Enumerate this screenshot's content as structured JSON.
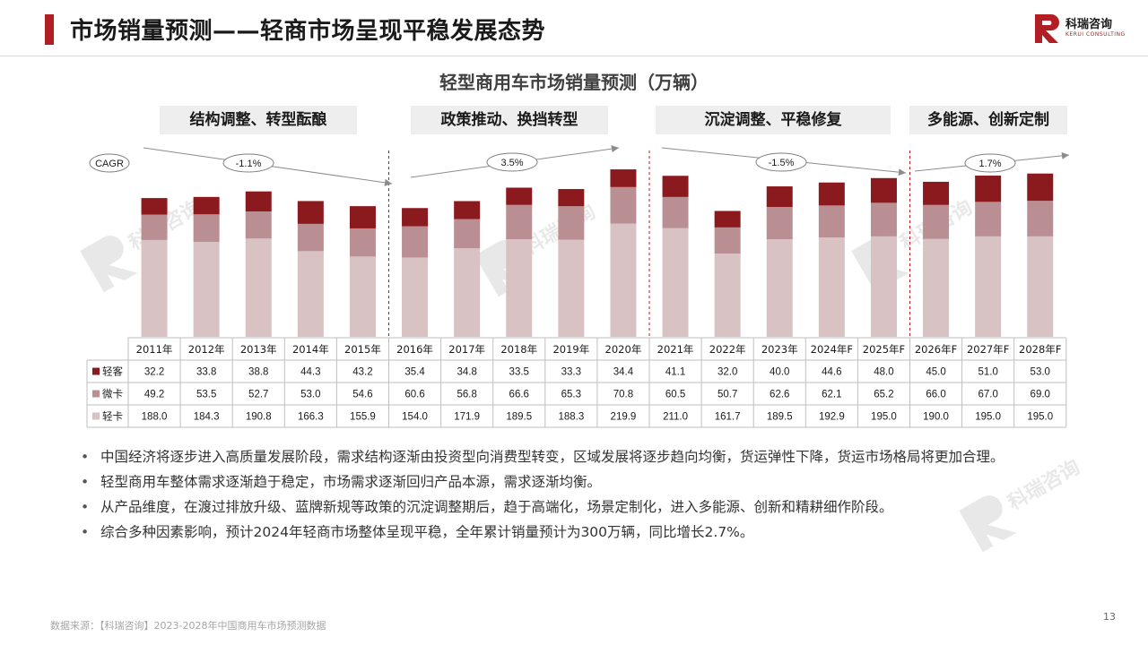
{
  "header": {
    "title": "市场销量预测——轻商市场呈现平稳发展态势",
    "logo_name": "科瑞咨询",
    "logo_sub": "KERUI CONSULTING"
  },
  "phases": [
    {
      "label": "结构调整、转型酝酿",
      "cagr": "-1.1%"
    },
    {
      "label": "政策推动、换挡转型",
      "cagr": "3.5%"
    },
    {
      "label": "沉淀调整、平稳修复",
      "cagr": "-1.5%"
    },
    {
      "label": "多能源、创新定制",
      "cagr": "1.7%"
    }
  ],
  "cagr_label": "CAGR",
  "colors": {
    "light_passenger": "#8b1a1e",
    "mini_truck": "#b98f93",
    "light_truck": "#d8c2c4",
    "accent": "#b11f24"
  },
  "chart_data": {
    "type": "bar",
    "stacked": true,
    "title": "轻型商用车市场销量预测（万辆）",
    "categories": [
      "2011年",
      "2012年",
      "2013年",
      "2014年",
      "2015年",
      "2016年",
      "2017年",
      "2018年",
      "2019年",
      "2020年",
      "2021年",
      "2022年",
      "2023年",
      "2024年F",
      "2025年F",
      "2026年F",
      "2027年F",
      "2028年F"
    ],
    "series": [
      {
        "name": "轻客",
        "values": [
          32.2,
          33.8,
          38.8,
          44.3,
          43.2,
          35.4,
          34.8,
          33.5,
          33.3,
          34.4,
          41.1,
          32.0,
          40.0,
          44.6,
          48.0,
          45.0,
          51.0,
          53.0
        ]
      },
      {
        "name": "微卡",
        "values": [
          49.2,
          53.5,
          52.7,
          53.0,
          54.6,
          60.6,
          56.8,
          66.6,
          65.3,
          70.8,
          60.5,
          50.7,
          62.6,
          62.1,
          65.2,
          66.0,
          67.0,
          69.0
        ]
      },
      {
        "name": "轻卡",
        "values": [
          188.0,
          184.3,
          190.8,
          166.3,
          155.9,
          154.0,
          171.9,
          189.5,
          188.3,
          219.9,
          211.0,
          161.7,
          189.5,
          192.9,
          195.0,
          190.0,
          195.0,
          195.0
        ]
      }
    ],
    "value_labels": {
      "轻客": [
        "32.2",
        "33.8",
        "38.8",
        "44.3",
        "43.2",
        "35.4",
        "34.8",
        "33.5",
        "33.3",
        "34.4",
        "41.1",
        "32.0",
        "40.0",
        "44.6",
        "48.0",
        "45.0",
        "51.0",
        "53.0"
      ],
      "微卡": [
        "49.2",
        "53.5",
        "52.7",
        "53.0",
        "54.6",
        "60.6",
        "56.8",
        "66.6",
        "65.3",
        "70.8",
        "60.5",
        "50.7",
        "62.6",
        "62.1",
        "65.2",
        "66.0",
        "67.0",
        "69.0"
      ],
      "轻卡": [
        "188.0",
        "184.3",
        "190.8",
        "166.3",
        "155.9",
        "154.0",
        "171.9",
        "189.5",
        "188.3",
        "219.9",
        "211.0",
        "161.7",
        "189.5",
        "192.9",
        "195.0",
        "190.0",
        "195.0",
        "195.0"
      ]
    },
    "legend_placement": "table-left"
  },
  "bullets": [
    "中国经济将逐步进入高质量发展阶段，需求结构逐渐由投资型向消费型转变，区域发展将逐步趋向均衡，货运弹性下降，货运市场格局将更加合理。",
    "轻型商用车整体需求逐渐趋于稳定，市场需求逐渐回归产品本源，需求逐渐均衡。",
    "从产品维度，在渡过排放升级、蓝牌新规等政策的沉淀调整期后，趋于高端化，场景定制化，进入多能源、创新和精耕细作阶段。",
    "综合多种因素影响，预计2024年轻商市场整体呈现平稳，全年累计销量预计为300万辆，同比增长2.7%。"
  ],
  "footer": {
    "source": "数据来源：【科瑞咨询】2023-2028年中国商用车市场预测数据",
    "page": "13"
  },
  "watermark_text": "科瑞咨询"
}
